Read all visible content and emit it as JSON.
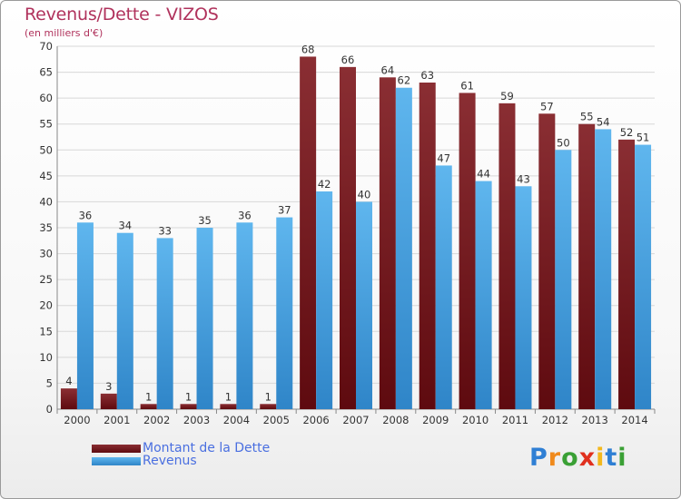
{
  "title": "Revenus/Dette - VIZOS",
  "subtitle": "(en milliers d'€)",
  "legend": [
    {
      "label": "Montant de la Dette",
      "color": "#6b0f14"
    },
    {
      "label": "Revenus",
      "color": "#3a9ee4"
    }
  ],
  "logo": {
    "text": "Proxiti",
    "letters": [
      "P",
      "r",
      "o",
      "x",
      "i",
      "t",
      "i"
    ],
    "colors": [
      "#2f7fd4",
      "#f08a1c",
      "#3aa035",
      "#e0301e",
      "#f3b81c",
      "#2f7fd4",
      "#3aa035"
    ]
  },
  "colors": {
    "debt_top": "#8a2e33",
    "debt_bottom": "#5e0a0f",
    "revenue_top": "#5fb6ee",
    "revenue_bottom": "#2f85c8",
    "grid": "#d8d8d8",
    "title": "#b0325c"
  },
  "chart_data": {
    "type": "bar",
    "categories": [
      "2000",
      "2001",
      "2002",
      "2003",
      "2004",
      "2005",
      "2006",
      "2007",
      "2008",
      "2009",
      "2010",
      "2011",
      "2012",
      "2013",
      "2014"
    ],
    "series": [
      {
        "name": "Montant de la Dette",
        "values": [
          4,
          3,
          1,
          1,
          1,
          1,
          68,
          66,
          64,
          63,
          61,
          59,
          57,
          55,
          52
        ]
      },
      {
        "name": "Revenus",
        "values": [
          36,
          34,
          33,
          35,
          36,
          37,
          42,
          40,
          62,
          47,
          44,
          43,
          50,
          54,
          51
        ]
      }
    ],
    "ylim": [
      0,
      70
    ],
    "yticks": [
      0,
      5,
      10,
      15,
      20,
      25,
      30,
      35,
      40,
      45,
      50,
      55,
      60,
      65,
      70
    ],
    "grid": true,
    "legend_position": "bottom-left"
  }
}
